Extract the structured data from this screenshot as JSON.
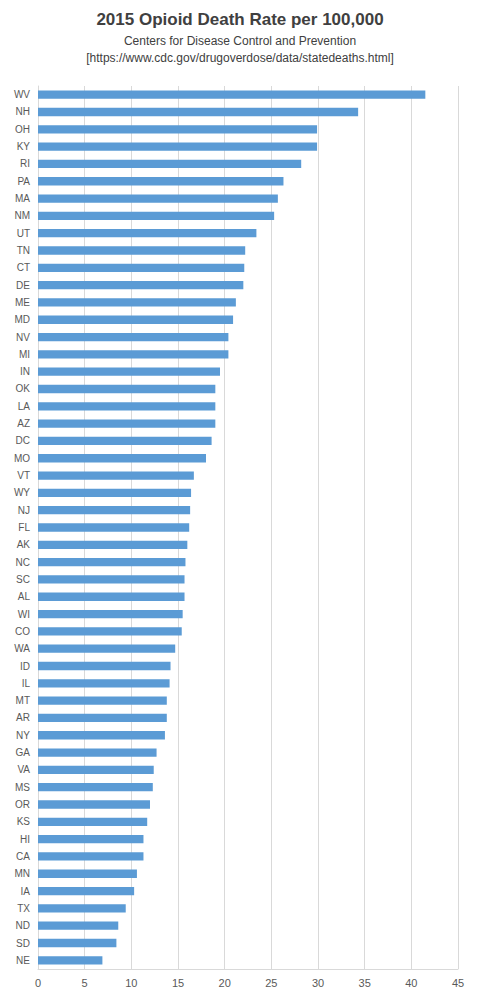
{
  "chart_data": {
    "type": "bar",
    "title": "2015 Opioid Death Rate per 100,000",
    "subtitle": [
      "Centers for Disease Control and Prevention",
      "[https://www.cdc.gov/drugoverdose/data/statedeaths.html]"
    ],
    "orientation": "horizontal",
    "categories": [
      "WV",
      "NH",
      "OH",
      "KY",
      "RI",
      "PA",
      "MA",
      "NM",
      "UT",
      "TN",
      "CT",
      "DE",
      "ME",
      "MD",
      "NV",
      "MI",
      "IN",
      "OK",
      "LA",
      "AZ",
      "DC",
      "MO",
      "VT",
      "WY",
      "NJ",
      "FL",
      "AK",
      "NC",
      "SC",
      "AL",
      "WI",
      "CO",
      "WA",
      "ID",
      "IL",
      "MT",
      "AR",
      "NY",
      "GA",
      "VA",
      "MS",
      "OR",
      "KS",
      "HI",
      "CA",
      "MN",
      "IA",
      "TX",
      "ND",
      "SD",
      "NE"
    ],
    "values": [
      41.5,
      34.3,
      29.9,
      29.9,
      28.2,
      26.3,
      25.7,
      25.3,
      23.4,
      22.2,
      22.1,
      22.0,
      21.2,
      20.9,
      20.4,
      20.4,
      19.5,
      19.0,
      19.0,
      19.0,
      18.6,
      18.0,
      16.7,
      16.4,
      16.3,
      16.2,
      16.0,
      15.8,
      15.7,
      15.7,
      15.5,
      15.4,
      14.7,
      14.2,
      14.1,
      13.8,
      13.8,
      13.6,
      12.7,
      12.4,
      12.3,
      12.0,
      11.7,
      11.3,
      11.3,
      10.6,
      10.3,
      9.4,
      8.6,
      8.4,
      6.9
    ],
    "color": "#5b9bd5",
    "xlim": [
      0,
      45
    ],
    "xticks": [
      0,
      5,
      10,
      15,
      20,
      25,
      30,
      35,
      40,
      45
    ],
    "grid": true
  }
}
